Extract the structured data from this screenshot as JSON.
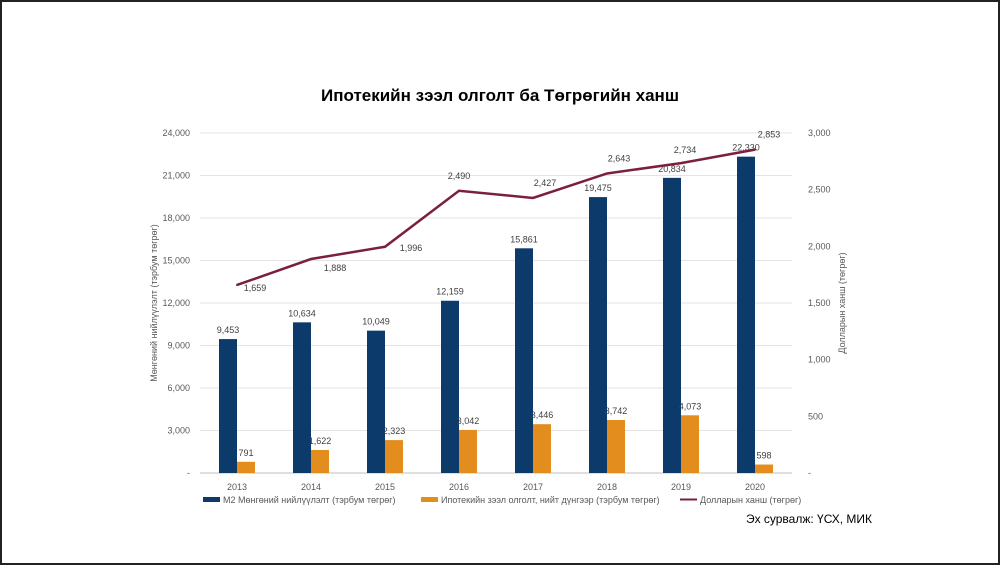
{
  "chart_data": {
    "type": "bar",
    "title": "Ипотекийн зээл олголт ба Төгрөгийн ханш",
    "categories": [
      "2013",
      "2014",
      "2015",
      "2016",
      "2017",
      "2018",
      "2019",
      "2020"
    ],
    "ylabel": "Мөнгөний нийлүүлэлт (тэрбум төгрөг)",
    "y2label": "Долларын ханш (төгрөг)",
    "ylim": [
      0,
      24000
    ],
    "y2lim": [
      0,
      3000
    ],
    "yticks": [
      "-",
      "3,000",
      "6,000",
      "9,000",
      "12,000",
      "15,000",
      "18,000",
      "21,000",
      "24,000"
    ],
    "y2ticks": [
      "-",
      "500",
      "1,000",
      "1,500",
      "2,000",
      "2,500",
      "3,000"
    ],
    "grid": true,
    "legend_position": "bottom",
    "series": [
      {
        "name": "М2 Мөнгөний нийлүүлэлт (тэрбум төгрөг)",
        "type": "bar",
        "axis": "left",
        "color": "#0b3a6b",
        "values": [
          9453,
          10634,
          10049,
          12159,
          15861,
          19475,
          20834,
          22330
        ],
        "labels": [
          "9,453",
          "10,634",
          "10,049",
          "12,159",
          "15,861",
          "19,475",
          "20,834",
          "22,330"
        ]
      },
      {
        "name": "Ипотекийн зээл олголт, нийт дүнгээр (тэрбум төгрөг)",
        "type": "bar",
        "axis": "left",
        "color": "#e28d1e",
        "values": [
          791,
          1622,
          2323,
          3042,
          3446,
          3742,
          4073,
          598
        ],
        "labels": [
          "791",
          "1,622",
          "2,323",
          "3,042",
          "3,446",
          "3,742",
          "4,073",
          "598"
        ]
      },
      {
        "name": "Долларын ханш (төгрөг)",
        "type": "line",
        "axis": "right",
        "color": "#7b1f3e",
        "values": [
          1659,
          1888,
          1996,
          2490,
          2427,
          2643,
          2734,
          2853
        ],
        "labels": [
          "1,659",
          "1,888",
          "1,996",
          "2,490",
          "2,427",
          "2,643",
          "2,734",
          "2,853"
        ]
      }
    ]
  },
  "source": "Эх сурвалж: ҮСХ, МИК"
}
